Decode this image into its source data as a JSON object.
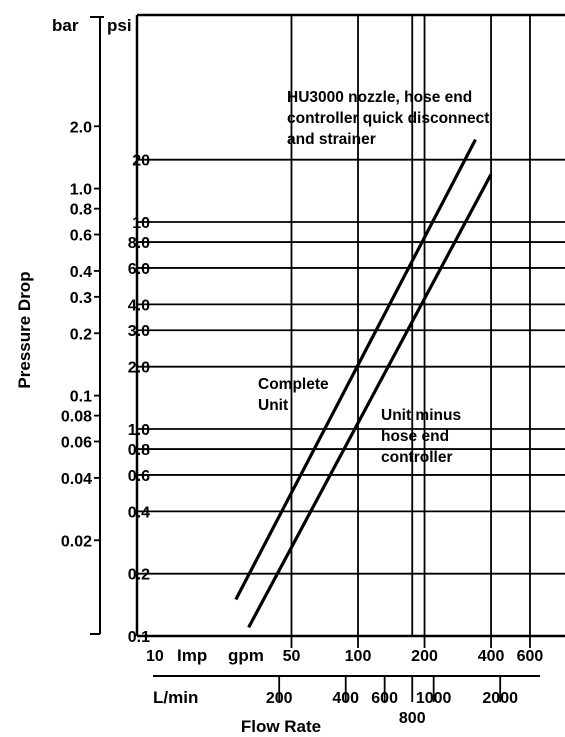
{
  "chart_data": {
    "type": "line",
    "scale": "log-log",
    "xlabel": "Flow Rate",
    "ylabel": "Pressure Drop",
    "x_unit_top": {
      "label_a": "Imp",
      "label_b": "gpm"
    },
    "x_unit_bottom": "L/min",
    "y_unit_left": "bar",
    "y_unit_right": "psi",
    "xlim_imp_gpm": [
      10,
      720
    ],
    "ylim_psi": [
      0.1,
      80
    ],
    "psi_ticks": [
      {
        "v": 0.1,
        "label": "0.1"
      },
      {
        "v": 0.2,
        "label": "0.2"
      },
      {
        "v": 0.4,
        "label": "0.4"
      },
      {
        "v": 0.6,
        "label": "0.6"
      },
      {
        "v": 0.8,
        "label": "0.8"
      },
      {
        "v": 1.0,
        "label": "1.0"
      },
      {
        "v": 2.0,
        "label": "2.0"
      },
      {
        "v": 3.0,
        "label": "3.0"
      },
      {
        "v": 4.0,
        "label": "4.0"
      },
      {
        "v": 6.0,
        "label": "6.0"
      },
      {
        "v": 8.0,
        "label": "8.0"
      },
      {
        "v": 10,
        "label": "10"
      },
      {
        "v": 20,
        "label": "20"
      }
    ],
    "bar_ticks": [
      {
        "v": 0.02,
        "label": "0.02"
      },
      {
        "v": 0.04,
        "label": "0.04"
      },
      {
        "v": 0.06,
        "label": "0.06"
      },
      {
        "v": 0.08,
        "label": "0.08"
      },
      {
        "v": 0.1,
        "label": "0.1"
      },
      {
        "v": 0.2,
        "label": "0.2"
      },
      {
        "v": 0.3,
        "label": "0.3"
      },
      {
        "v": 0.4,
        "label": "0.4"
      },
      {
        "v": 0.6,
        "label": "0.6"
      },
      {
        "v": 0.8,
        "label": "0.8"
      },
      {
        "v": 1.0,
        "label": "1.0"
      },
      {
        "v": 2.0,
        "label": "2.0"
      }
    ],
    "gpm_ticks": [
      {
        "v": 10,
        "label": "10"
      },
      {
        "v": 50,
        "label": "50"
      },
      {
        "v": 100,
        "label": "100"
      },
      {
        "v": 200,
        "label": "200"
      },
      {
        "v": 400,
        "label": "400"
      },
      {
        "v": 600,
        "label": "600"
      }
    ],
    "lmin_ticks": [
      {
        "v": 200,
        "label": "200"
      },
      {
        "v": 400,
        "label": "400"
      },
      {
        "v": 600,
        "label": "600"
      },
      {
        "v": 800,
        "label": "800"
      },
      {
        "v": 1000,
        "label": "1000"
      },
      {
        "v": 2000,
        "label": "2000"
      }
    ],
    "vgrid_gpm": [
      50,
      100,
      200,
      400,
      600
    ],
    "vgrid_lmin": [
      800
    ],
    "series": [
      {
        "name": "HU3000 nozzle, hose end controller quick disconnect and strainer",
        "points": [
          [
            28,
            0.15
          ],
          [
            340,
            25
          ]
        ]
      },
      {
        "name": "Unit minus hose end controller",
        "points": [
          [
            32,
            0.11
          ],
          [
            400,
            17
          ]
        ]
      }
    ],
    "annotations": [
      {
        "lines": [
          "HU3000 nozzle, hose end",
          "controller quick disconnect",
          "and strainer"
        ]
      },
      {
        "lines": [
          "Complete",
          "Unit"
        ]
      },
      {
        "lines": [
          "Unit minus",
          "hose end",
          "controller"
        ]
      }
    ]
  }
}
